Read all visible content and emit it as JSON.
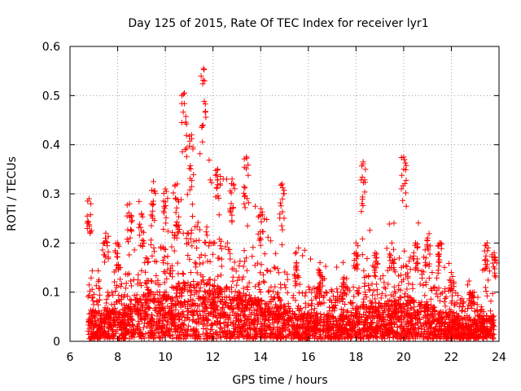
{
  "chart_data": {
    "type": "scatter",
    "title": "Day 125 of 2015, Rate Of TEC Index for receiver lyr1",
    "xlabel": "GPS time / hours",
    "ylabel": "ROTI / TECUs",
    "xlim": [
      6,
      24
    ],
    "ylim": [
      0,
      0.6
    ],
    "xticks": [
      "6",
      "8",
      "10",
      "12",
      "14",
      "16",
      "18",
      "20",
      "22",
      "24"
    ],
    "yticks": [
      "0",
      "0.1",
      "0.2",
      "0.3",
      "0.4",
      "0.5",
      "0.6"
    ],
    "grid": true,
    "marker": "+",
    "color": "#ff0000",
    "data_start_hour": 6.75,
    "data_end_hour": 23.8,
    "envelope": [
      {
        "x": 6.8,
        "peak": 0.29,
        "base": 0.06
      },
      {
        "x": 7.5,
        "peak": 0.22,
        "base": 0.06
      },
      {
        "x": 8.0,
        "peak": 0.2,
        "base": 0.06
      },
      {
        "x": 8.5,
        "peak": 0.28,
        "base": 0.07
      },
      {
        "x": 9.0,
        "peak": 0.26,
        "base": 0.09
      },
      {
        "x": 9.5,
        "peak": 0.325,
        "base": 0.1
      },
      {
        "x": 10.0,
        "peak": 0.31,
        "base": 0.1
      },
      {
        "x": 10.5,
        "peak": 0.32,
        "base": 0.11
      },
      {
        "x": 10.8,
        "peak": 0.505,
        "base": 0.12
      },
      {
        "x": 11.1,
        "peak": 0.42,
        "base": 0.12
      },
      {
        "x": 11.6,
        "peak": 0.555,
        "base": 0.12
      },
      {
        "x": 12.2,
        "peak": 0.35,
        "base": 0.11
      },
      {
        "x": 12.8,
        "peak": 0.33,
        "base": 0.1
      },
      {
        "x": 13.4,
        "peak": 0.375,
        "base": 0.09
      },
      {
        "x": 14.0,
        "peak": 0.27,
        "base": 0.08
      },
      {
        "x": 14.9,
        "peak": 0.32,
        "base": 0.07
      },
      {
        "x": 15.5,
        "peak": 0.16,
        "base": 0.06
      },
      {
        "x": 16.5,
        "peak": 0.14,
        "base": 0.05
      },
      {
        "x": 17.5,
        "peak": 0.13,
        "base": 0.05
      },
      {
        "x": 18.0,
        "peak": 0.2,
        "base": 0.06
      },
      {
        "x": 18.3,
        "peak": 0.365,
        "base": 0.07
      },
      {
        "x": 18.8,
        "peak": 0.18,
        "base": 0.07
      },
      {
        "x": 19.5,
        "peak": 0.2,
        "base": 0.08
      },
      {
        "x": 20.0,
        "peak": 0.375,
        "base": 0.09
      },
      {
        "x": 20.5,
        "peak": 0.2,
        "base": 0.08
      },
      {
        "x": 21.0,
        "peak": 0.21,
        "base": 0.07
      },
      {
        "x": 21.5,
        "peak": 0.2,
        "base": 0.06
      },
      {
        "x": 22.0,
        "peak": 0.14,
        "base": 0.05
      },
      {
        "x": 22.8,
        "peak": 0.1,
        "base": 0.04
      },
      {
        "x": 23.5,
        "peak": 0.2,
        "base": 0.05
      },
      {
        "x": 23.8,
        "peak": 0.18,
        "base": 0.05
      }
    ]
  }
}
